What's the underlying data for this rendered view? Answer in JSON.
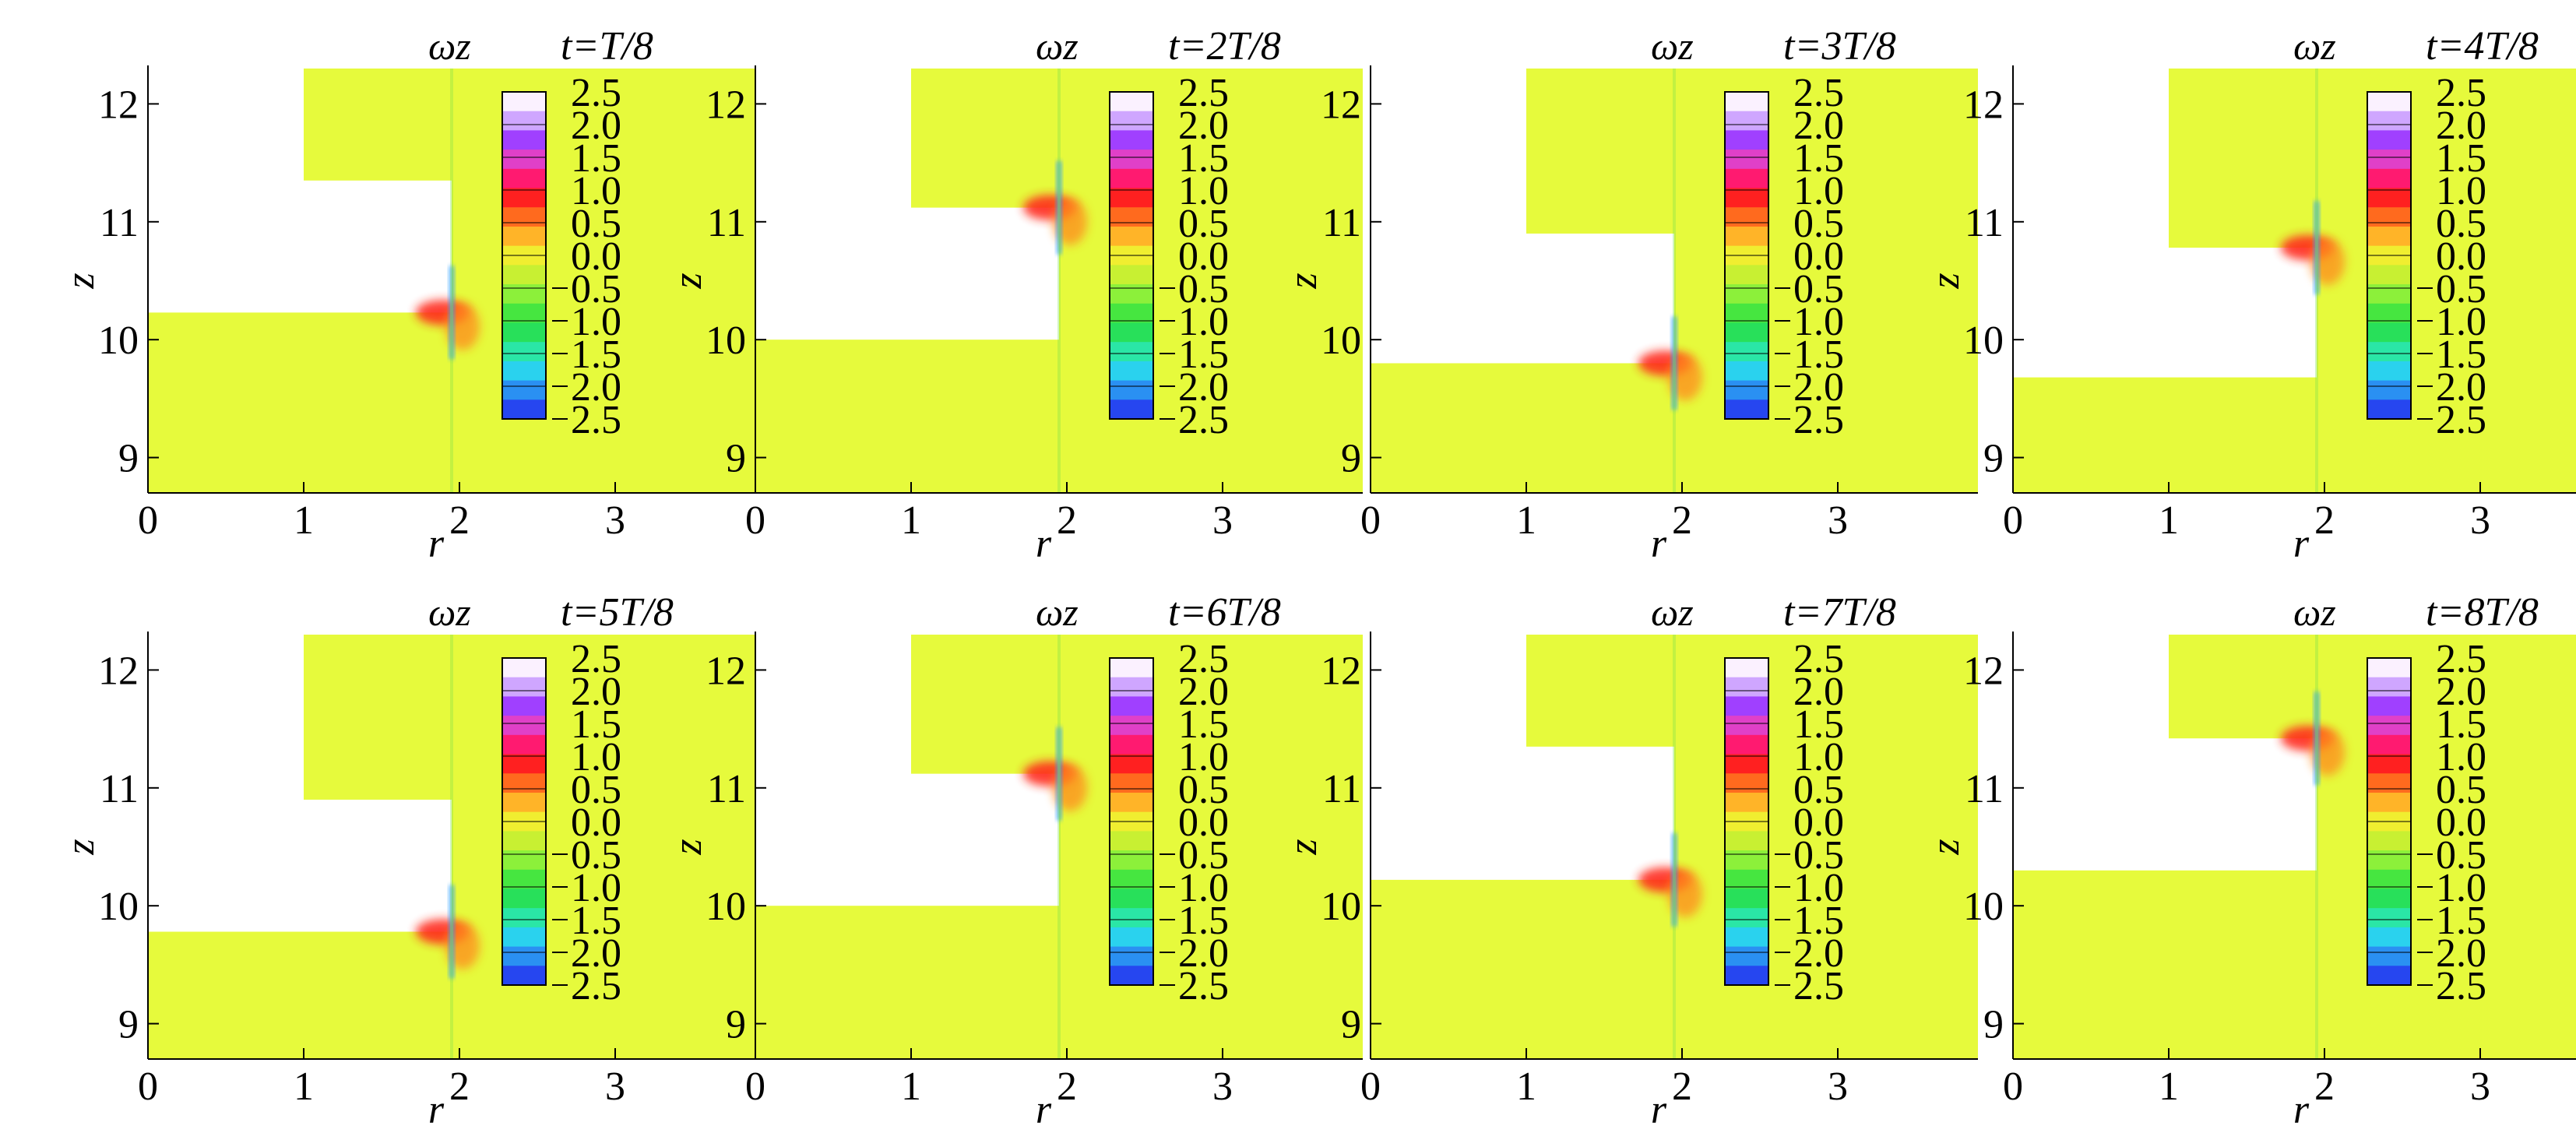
{
  "figure": {
    "colors": {
      "background_field": "#e6fa3c",
      "axis": "#000000",
      "text": "#000000"
    },
    "colorbar": {
      "labels": [
        "2.5",
        "2.0",
        "1.5",
        "1.0",
        "0.5",
        "0.0",
        "0.5",
        "1.0",
        "1.5",
        "2.0",
        "2.5"
      ],
      "neg_marks": [
        false,
        false,
        false,
        false,
        false,
        false,
        true,
        true,
        true,
        true,
        true
      ],
      "colors": [
        "#fbf1ff",
        "#cfa6ff",
        "#a040ff",
        "#e040c8",
        "#ff1a70",
        "#ff2020",
        "#ff6a1e",
        "#ffb428",
        "#f0ee30",
        "#c8f032",
        "#8cf03a",
        "#46e640",
        "#28e05a",
        "#2ae6a6",
        "#2ad2ee",
        "#2a90f2",
        "#2646f0"
      ]
    }
  },
  "chart_data": [
    {
      "type": "heatmap",
      "panel": 1,
      "variable": "ωz",
      "time_label": "t=T/8",
      "xlabel": "r",
      "ylabel": "z",
      "xticks": [
        "0",
        "1",
        "2",
        "3"
      ],
      "yticks": [
        "9",
        "10",
        "11",
        "12"
      ],
      "xlim": [
        0,
        3.9
      ],
      "ylim": [
        8.7,
        12.3
      ],
      "boundary": {
        "outer_top_z": 10.23,
        "inner_bottom_z": 11.35,
        "wall_r": 1.95,
        "inner_left_r": 1.0
      },
      "colorbar_range": [
        -2.5,
        2.5
      ]
    },
    {
      "type": "heatmap",
      "panel": 2,
      "variable": "ωz",
      "time_label": "t=2T/8",
      "xlabel": "r",
      "ylabel": "z",
      "xticks": [
        "0",
        "1",
        "2",
        "3"
      ],
      "yticks": [
        "9",
        "10",
        "11",
        "12"
      ],
      "xlim": [
        0,
        3.9
      ],
      "ylim": [
        8.7,
        12.3
      ],
      "boundary": {
        "outer_top_z": 10.0,
        "inner_bottom_z": 11.12,
        "wall_r": 1.95,
        "inner_left_r": 1.0
      },
      "colorbar_range": [
        -2.5,
        2.5
      ]
    },
    {
      "type": "heatmap",
      "panel": 3,
      "variable": "ωz",
      "time_label": "t=3T/8",
      "xlabel": "r",
      "ylabel": "z",
      "xticks": [
        "0",
        "1",
        "2",
        "3"
      ],
      "yticks": [
        "9",
        "10",
        "11",
        "12"
      ],
      "xlim": [
        0,
        3.9
      ],
      "ylim": [
        8.7,
        12.3
      ],
      "boundary": {
        "outer_top_z": 9.8,
        "inner_bottom_z": 10.9,
        "wall_r": 1.95,
        "inner_left_r": 1.0
      },
      "colorbar_range": [
        -2.5,
        2.5
      ]
    },
    {
      "type": "heatmap",
      "panel": 4,
      "variable": "ωz",
      "time_label": "t=4T/8",
      "xlabel": "r",
      "ylabel": "z",
      "xticks": [
        "0",
        "1",
        "2",
        "3"
      ],
      "yticks": [
        "9",
        "10",
        "11",
        "12"
      ],
      "xlim": [
        0,
        3.9
      ],
      "ylim": [
        8.7,
        12.3
      ],
      "boundary": {
        "outer_top_z": 9.68,
        "inner_bottom_z": 10.78,
        "wall_r": 1.95,
        "inner_left_r": 1.0
      },
      "colorbar_range": [
        -2.5,
        2.5
      ]
    },
    {
      "type": "heatmap",
      "panel": 5,
      "variable": "ωz",
      "time_label": "t=5T/8",
      "xlabel": "r",
      "ylabel": "z",
      "xticks": [
        "0",
        "1",
        "2",
        "3"
      ],
      "yticks": [
        "9",
        "10",
        "11",
        "12"
      ],
      "xlim": [
        0,
        3.9
      ],
      "ylim": [
        8.7,
        12.3
      ],
      "boundary": {
        "outer_top_z": 9.78,
        "inner_bottom_z": 10.9,
        "wall_r": 1.95,
        "inner_left_r": 1.0
      },
      "colorbar_range": [
        -2.5,
        2.5
      ]
    },
    {
      "type": "heatmap",
      "panel": 6,
      "variable": "ωz",
      "time_label": "t=6T/8",
      "xlabel": "r",
      "ylabel": "z",
      "xticks": [
        "0",
        "1",
        "2",
        "3"
      ],
      "yticks": [
        "9",
        "10",
        "11",
        "12"
      ],
      "xlim": [
        0,
        3.9
      ],
      "ylim": [
        8.7,
        12.3
      ],
      "boundary": {
        "outer_top_z": 10.0,
        "inner_bottom_z": 11.12,
        "wall_r": 1.95,
        "inner_left_r": 1.0
      },
      "colorbar_range": [
        -2.5,
        2.5
      ]
    },
    {
      "type": "heatmap",
      "panel": 7,
      "variable": "ωz",
      "time_label": "t=7T/8",
      "xlabel": "r",
      "ylabel": "z",
      "xticks": [
        "0",
        "1",
        "2",
        "3"
      ],
      "yticks": [
        "9",
        "10",
        "11",
        "12"
      ],
      "xlim": [
        0,
        3.9
      ],
      "ylim": [
        8.7,
        12.3
      ],
      "boundary": {
        "outer_top_z": 10.22,
        "inner_bottom_z": 11.35,
        "wall_r": 1.95,
        "inner_left_r": 1.0
      },
      "colorbar_range": [
        -2.5,
        2.5
      ]
    },
    {
      "type": "heatmap",
      "panel": 8,
      "variable": "ωz",
      "time_label": "t=8T/8",
      "xlabel": "r",
      "ylabel": "z",
      "xticks": [
        "0",
        "1",
        "2",
        "3"
      ],
      "yticks": [
        "9",
        "10",
        "11",
        "12"
      ],
      "xlim": [
        0,
        3.9
      ],
      "ylim": [
        8.7,
        12.3
      ],
      "boundary": {
        "outer_top_z": 10.3,
        "inner_bottom_z": 11.42,
        "wall_r": 1.95,
        "inner_left_r": 1.0
      },
      "colorbar_range": [
        -2.5,
        2.5
      ]
    }
  ]
}
